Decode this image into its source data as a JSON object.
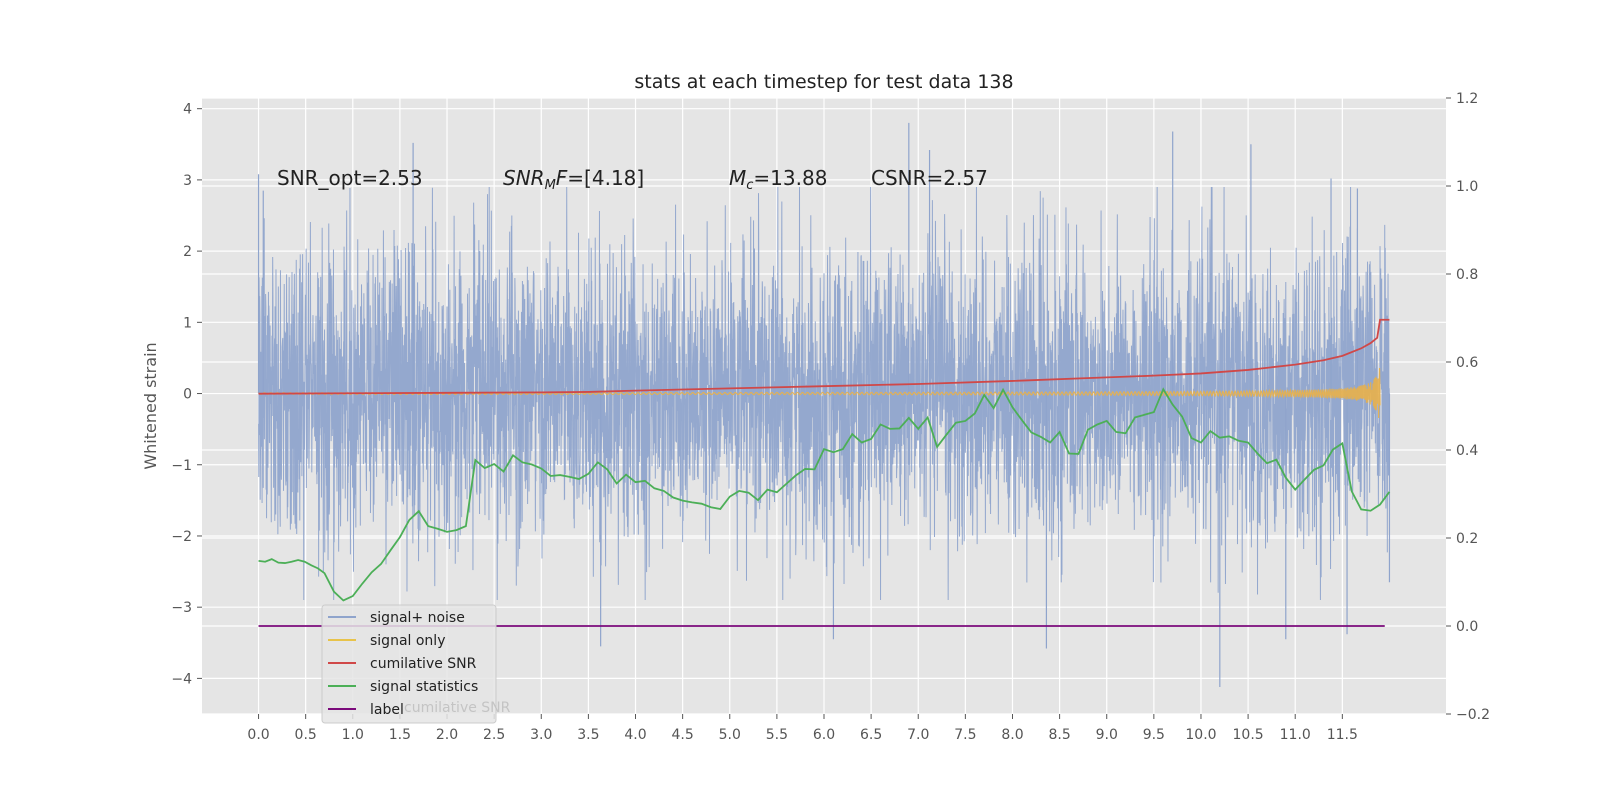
{
  "chart_data": {
    "type": "line",
    "title": "stats at each timestep for test data 138",
    "ylabel": "Whitened strain",
    "xlabel": "",
    "xlim": [
      -0.6,
      12.6
    ],
    "ylim": [
      -4.5,
      4.15
    ],
    "y2lim": [
      -0.2,
      1.2
    ],
    "grid": true,
    "x_ticks": [
      0.0,
      0.5,
      1.0,
      1.5,
      2.0,
      2.5,
      3.0,
      3.5,
      4.0,
      4.5,
      5.0,
      5.5,
      6.0,
      6.5,
      7.0,
      7.5,
      8.0,
      8.5,
      9.0,
      9.5,
      10.0,
      10.5,
      11.0,
      11.5
    ],
    "x_tick_labels": [
      "0.0",
      "0.5",
      "1.0",
      "1.5",
      "2.0",
      "2.5",
      "3.0",
      "3.5",
      "4.0",
      "4.5",
      "5.0",
      "5.5",
      "6.0",
      "6.5",
      "7.0",
      "7.5",
      "8.0",
      "8.5",
      "9.0",
      "9.5",
      "10.0",
      "10.5",
      "11.0",
      "11.5"
    ],
    "y_ticks": [
      4,
      3,
      2,
      1,
      0,
      -1,
      -2,
      -3,
      -4
    ],
    "y_tick_labels": [
      "4",
      "3",
      "2",
      "1",
      "0",
      "−1",
      "−2",
      "−3",
      "−4"
    ],
    "y2_ticks": [
      1.2,
      1.0,
      0.8,
      0.6,
      0.4,
      0.2,
      0.0,
      -0.2
    ],
    "y2_tick_labels": [
      "1.2",
      "1.0",
      "0.8",
      "0.6",
      "0.4",
      "0.2",
      "0.0",
      "−0.2"
    ],
    "annotations": [
      {
        "key": "snr-opt",
        "text": "SNR_opt=2.53",
        "x": 0.2,
        "y": 3.1
      },
      {
        "key": "snr-mf",
        "text": "SNR_MF=[4.18]",
        "x": 2.6,
        "y": 3.1
      },
      {
        "key": "chirp-mass",
        "text": "M_c=13.88",
        "x": 5.0,
        "y": 3.1
      },
      {
        "key": "csnr",
        "text": "CSNR=2.57",
        "x": 6.5,
        "y": 3.1
      }
    ],
    "legend": {
      "placement": "lower-left",
      "entries": [
        "signal+ noise",
        "signal only",
        "cumilative SNR",
        "signal statistics",
        "label"
      ],
      "ghost_text": "cumilative SNR"
    },
    "series": [
      {
        "name": "signal+ noise",
        "axis": "left",
        "color": "#8fa4cc",
        "style": "dense-noise",
        "x_range": [
          0.0,
          12.0
        ],
        "std": 1.0,
        "spikes": [
          {
            "x": 0.0,
            "y": 3.08
          },
          {
            "x": 0.05,
            "y": 2.85
          },
          {
            "x": 1.64,
            "y": 3.52
          },
          {
            "x": 3.63,
            "y": -3.55
          },
          {
            "x": 5.99,
            "y": 1.3
          },
          {
            "x": 6.1,
            "y": -3.45
          },
          {
            "x": 6.9,
            "y": 3.8
          },
          {
            "x": 7.12,
            "y": 3.42
          },
          {
            "x": 8.36,
            "y": -3.58
          },
          {
            "x": 9.7,
            "y": 3.68
          },
          {
            "x": 10.2,
            "y": -4.12
          },
          {
            "x": 10.53,
            "y": 3.5
          },
          {
            "x": 10.9,
            "y": -3.45
          },
          {
            "x": 11.38,
            "y": 3.02
          },
          {
            "x": 11.66,
            "y": 2.88
          },
          {
            "x": 11.55,
            "y": -3.38
          },
          {
            "x": 12.0,
            "y": -2.65
          }
        ]
      },
      {
        "name": "signal only",
        "axis": "left",
        "color": "#e8b04a",
        "style": "chirp",
        "x_range": [
          0.0,
          11.9
        ],
        "peak_amplitude": 0.48
      },
      {
        "name": "cumilative SNR",
        "axis": "right",
        "color": "#d04848",
        "style": "line",
        "x": [
          0.0,
          1.0,
          2.0,
          3.0,
          3.5,
          4.0,
          5.0,
          6.0,
          7.0,
          8.0,
          9.0,
          9.5,
          10.0,
          10.5,
          11.0,
          11.3,
          11.5,
          11.7,
          11.8,
          11.87,
          11.9,
          12.0
        ],
        "y": [
          0.528,
          0.529,
          0.53,
          0.531,
          0.532,
          0.535,
          0.54,
          0.545,
          0.55,
          0.557,
          0.565,
          0.569,
          0.574,
          0.582,
          0.594,
          0.604,
          0.614,
          0.631,
          0.643,
          0.655,
          0.696,
          0.696
        ]
      },
      {
        "name": "signal statistics",
        "axis": "right",
        "color": "#4caf57",
        "style": "line",
        "x": [
          0.0,
          0.07,
          0.14,
          0.21,
          0.28,
          0.35,
          0.42,
          0.49,
          0.56,
          0.63,
          0.7,
          0.8,
          0.9,
          1.0,
          1.1,
          1.2,
          1.3,
          1.4,
          1.5,
          1.6,
          1.7,
          1.8,
          1.9,
          2.0,
          2.1,
          2.2,
          2.3,
          2.4,
          2.5,
          2.6,
          2.7,
          2.8,
          2.9,
          3.0,
          3.1,
          3.2,
          3.3,
          3.4,
          3.5,
          3.6,
          3.7,
          3.8,
          3.9,
          4.0,
          4.1,
          4.2,
          4.3,
          4.4,
          4.5,
          4.6,
          4.7,
          4.8,
          4.9,
          5.0,
          5.1,
          5.2,
          5.3,
          5.4,
          5.5,
          5.6,
          5.7,
          5.8,
          5.9,
          6.0,
          6.1,
          6.2,
          6.3,
          6.4,
          6.5,
          6.6,
          6.7,
          6.8,
          6.9,
          7.0,
          7.1,
          7.2,
          7.3,
          7.4,
          7.5,
          7.6,
          7.7,
          7.8,
          7.9,
          8.0,
          8.1,
          8.2,
          8.3,
          8.4,
          8.5,
          8.6,
          8.7,
          8.8,
          8.9,
          9.0,
          9.1,
          9.2,
          9.3,
          9.4,
          9.5,
          9.6,
          9.7,
          9.8,
          9.9,
          10.0,
          10.1,
          10.2,
          10.3,
          10.4,
          10.5,
          10.6,
          10.7,
          10.8,
          10.9,
          11.0,
          11.1,
          11.2,
          11.3,
          11.4,
          11.5,
          11.6,
          11.7,
          11.8,
          11.9,
          12.0
        ],
        "y": [
          0.148,
          0.146,
          0.152,
          0.144,
          0.143,
          0.146,
          0.15,
          0.146,
          0.138,
          0.131,
          0.12,
          0.078,
          0.058,
          0.068,
          0.096,
          0.122,
          0.141,
          0.172,
          0.202,
          0.241,
          0.261,
          0.227,
          0.221,
          0.214,
          0.218,
          0.227,
          0.377,
          0.359,
          0.368,
          0.351,
          0.388,
          0.372,
          0.367,
          0.358,
          0.341,
          0.343,
          0.339,
          0.334,
          0.346,
          0.372,
          0.356,
          0.324,
          0.344,
          0.327,
          0.33,
          0.313,
          0.307,
          0.292,
          0.285,
          0.281,
          0.278,
          0.27,
          0.266,
          0.294,
          0.307,
          0.303,
          0.286,
          0.31,
          0.304,
          0.323,
          0.342,
          0.357,
          0.356,
          0.402,
          0.395,
          0.402,
          0.436,
          0.417,
          0.425,
          0.458,
          0.448,
          0.449,
          0.473,
          0.448,
          0.474,
          0.407,
          0.435,
          0.462,
          0.466,
          0.483,
          0.525,
          0.495,
          0.537,
          0.497,
          0.468,
          0.44,
          0.43,
          0.417,
          0.441,
          0.392,
          0.391,
          0.446,
          0.458,
          0.466,
          0.441,
          0.438,
          0.474,
          0.48,
          0.486,
          0.538,
          0.503,
          0.476,
          0.427,
          0.417,
          0.443,
          0.428,
          0.431,
          0.421,
          0.417,
          0.392,
          0.37,
          0.378,
          0.337,
          0.31,
          0.333,
          0.355,
          0.365,
          0.401,
          0.415,
          0.306,
          0.265,
          0.262,
          0.276,
          0.305
        ]
      },
      {
        "name": "label",
        "axis": "right",
        "color": "#7b0a7b",
        "style": "line",
        "x": [
          0.0,
          11.95
        ],
        "y": [
          0.0,
          0.0
        ]
      }
    ]
  }
}
